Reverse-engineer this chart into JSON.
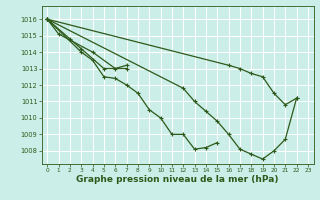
{
  "bg_color": "#cceee8",
  "grid_color": "#aaddcc",
  "line_color": "#2d5a1b",
  "marker_color": "#2d5a1b",
  "xlabel": "Graphe pression niveau de la mer (hPa)",
  "xlabel_fontsize": 6.5,
  "xlim": [
    -0.5,
    23.5
  ],
  "ylim": [
    1007.2,
    1016.8
  ],
  "yticks": [
    1008,
    1009,
    1010,
    1011,
    1012,
    1013,
    1014,
    1015,
    1016
  ],
  "xticks": [
    0,
    1,
    2,
    3,
    4,
    5,
    6,
    7,
    8,
    9,
    10,
    11,
    12,
    13,
    14,
    15,
    16,
    17,
    18,
    19,
    20,
    21,
    22,
    23
  ],
  "series": [
    {
      "x": [
        0,
        1,
        4,
        6,
        7
      ],
      "y": [
        1016,
        1015.1,
        1014.0,
        1013.0,
        1013.2
      ]
    },
    {
      "x": [
        0,
        2,
        3,
        5,
        7
      ],
      "y": [
        1016,
        1014.8,
        1014.2,
        1013.0,
        1013.0
      ]
    },
    {
      "x": [
        0,
        3,
        4,
        5,
        6,
        7,
        8,
        9,
        10,
        11,
        12,
        13,
        14,
        15
      ],
      "y": [
        1016,
        1014.0,
        1013.5,
        1012.5,
        1012.4,
        1012.0,
        1011.5,
        1010.5,
        1010.0,
        1009.0,
        1009.0,
        1008.1,
        1008.2,
        1008.5
      ]
    },
    {
      "x": [
        0,
        12,
        13,
        14,
        15,
        16,
        17,
        18,
        19,
        20,
        21,
        22
      ],
      "y": [
        1016,
        1011.8,
        1011.0,
        1010.4,
        1009.8,
        1009.0,
        1008.1,
        1007.8,
        1007.5,
        1008.0,
        1008.7,
        1011.2
      ]
    },
    {
      "x": [
        0,
        16,
        17,
        18,
        19,
        20,
        21,
        22
      ],
      "y": [
        1016,
        1013.2,
        1013.0,
        1012.7,
        1012.5,
        1011.5,
        1010.8,
        1011.2
      ]
    }
  ]
}
